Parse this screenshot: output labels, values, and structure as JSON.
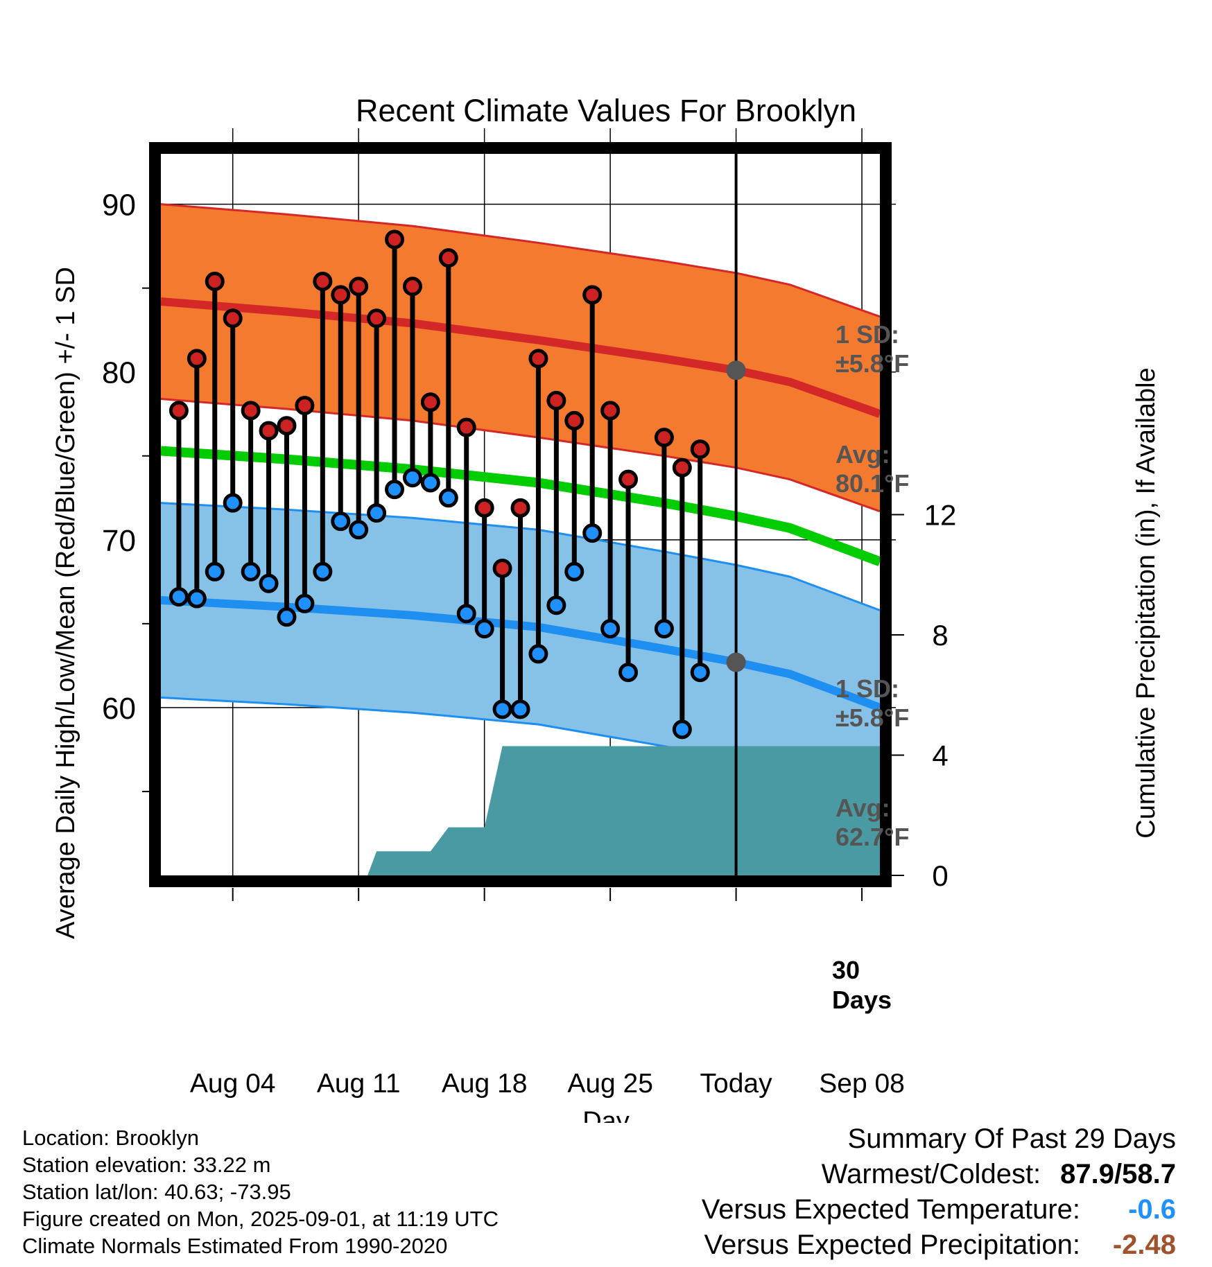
{
  "chart_data": {
    "type": "line",
    "title": "Recent Climate Values For Brooklyn",
    "xlabel": "Day",
    "ylabel": "Average Daily High/Low/Mean (Red/Blue/Green) +/- 1 SD",
    "y2label": "Cumulative Precipitation (in), If Available",
    "x_range": [
      "Jul 31",
      "Sep 10"
    ],
    "ylim": [
      50,
      93
    ],
    "y2lim": [
      0,
      24
    ],
    "yticks": [
      60,
      70,
      80,
      90
    ],
    "y2ticks": [
      0,
      4,
      8,
      12
    ],
    "xtick_labels": [
      "Aug 04",
      "Aug 11",
      "Aug 18",
      "Aug 25",
      "Today",
      "Sep 08"
    ],
    "xtick_days": [
      4,
      11,
      18,
      25,
      32,
      39
    ],
    "today_day": 32,
    "grid": true,
    "daily_high": [
      {
        "day": 1,
        "value": 77.7
      },
      {
        "day": 2,
        "value": 80.8
      },
      {
        "day": 3,
        "value": 85.4
      },
      {
        "day": 4,
        "value": 83.2
      },
      {
        "day": 5,
        "value": 77.7
      },
      {
        "day": 6,
        "value": 76.5
      },
      {
        "day": 7,
        "value": 76.8
      },
      {
        "day": 8,
        "value": 78.0
      },
      {
        "day": 9,
        "value": 85.4
      },
      {
        "day": 10,
        "value": 84.6
      },
      {
        "day": 11,
        "value": 85.1
      },
      {
        "day": 12,
        "value": 83.2
      },
      {
        "day": 13,
        "value": 87.9
      },
      {
        "day": 14,
        "value": 85.1
      },
      {
        "day": 15,
        "value": 78.2
      },
      {
        "day": 16,
        "value": 86.8
      },
      {
        "day": 17,
        "value": 76.7
      },
      {
        "day": 18,
        "value": 71.9
      },
      {
        "day": 19,
        "value": 68.3
      },
      {
        "day": 20,
        "value": 71.9
      },
      {
        "day": 21,
        "value": 80.8
      },
      {
        "day": 22,
        "value": 78.3
      },
      {
        "day": 23,
        "value": 77.1
      },
      {
        "day": 24,
        "value": 84.6
      },
      {
        "day": 25,
        "value": 77.7
      },
      {
        "day": 26,
        "value": 73.6
      },
      {
        "day": 28,
        "value": 76.1
      },
      {
        "day": 29,
        "value": 74.3
      },
      {
        "day": 30,
        "value": 75.4
      }
    ],
    "daily_low": [
      {
        "day": 1,
        "value": 66.6
      },
      {
        "day": 2,
        "value": 66.5
      },
      {
        "day": 3,
        "value": 68.1
      },
      {
        "day": 4,
        "value": 72.2
      },
      {
        "day": 5,
        "value": 68.1
      },
      {
        "day": 6,
        "value": 67.4
      },
      {
        "day": 7,
        "value": 65.4
      },
      {
        "day": 8,
        "value": 66.2
      },
      {
        "day": 9,
        "value": 68.1
      },
      {
        "day": 10,
        "value": 71.1
      },
      {
        "day": 11,
        "value": 70.6
      },
      {
        "day": 12,
        "value": 71.6
      },
      {
        "day": 13,
        "value": 73.0
      },
      {
        "day": 14,
        "value": 73.7
      },
      {
        "day": 15,
        "value": 73.4
      },
      {
        "day": 16,
        "value": 72.5
      },
      {
        "day": 17,
        "value": 65.6
      },
      {
        "day": 18,
        "value": 64.7
      },
      {
        "day": 19,
        "value": 59.9
      },
      {
        "day": 20,
        "value": 59.9
      },
      {
        "day": 21,
        "value": 63.2
      },
      {
        "day": 22,
        "value": 66.1
      },
      {
        "day": 23,
        "value": 68.1
      },
      {
        "day": 24,
        "value": 70.4
      },
      {
        "day": 25,
        "value": 64.7
      },
      {
        "day": 26,
        "value": 62.1
      },
      {
        "day": 28,
        "value": 64.7
      },
      {
        "day": 29,
        "value": 58.7
      },
      {
        "day": 30,
        "value": 62.1
      }
    ],
    "normal_high": [
      {
        "day": 0,
        "value": 84.2
      },
      {
        "day": 7,
        "value": 83.6
      },
      {
        "day": 14,
        "value": 82.9
      },
      {
        "day": 21,
        "value": 81.9
      },
      {
        "day": 28,
        "value": 80.8
      },
      {
        "day": 32,
        "value": 80.1
      },
      {
        "day": 35,
        "value": 79.4
      },
      {
        "day": 40,
        "value": 77.5
      }
    ],
    "normal_low": [
      {
        "day": 0,
        "value": 66.4
      },
      {
        "day": 7,
        "value": 66.0
      },
      {
        "day": 14,
        "value": 65.5
      },
      {
        "day": 21,
        "value": 64.8
      },
      {
        "day": 28,
        "value": 63.5
      },
      {
        "day": 32,
        "value": 62.7
      },
      {
        "day": 35,
        "value": 62.0
      },
      {
        "day": 40,
        "value": 60.0
      }
    ],
    "normal_mean": [
      {
        "day": 0,
        "value": 75.3
      },
      {
        "day": 7,
        "value": 74.8
      },
      {
        "day": 14,
        "value": 74.2
      },
      {
        "day": 21,
        "value": 73.4
      },
      {
        "day": 28,
        "value": 72.2
      },
      {
        "day": 32,
        "value": 71.4
      },
      {
        "day": 35,
        "value": 70.7
      },
      {
        "day": 40,
        "value": 68.7
      }
    ],
    "sd": 5.8,
    "cumulative_precip": [
      {
        "day": 11.5,
        "value": 0
      },
      {
        "day": 12,
        "value": 0.8
      },
      {
        "day": 15,
        "value": 0.8
      },
      {
        "day": 16,
        "value": 1.6
      },
      {
        "day": 18,
        "value": 1.6
      },
      {
        "day": 19,
        "value": 4.3
      },
      {
        "day": 40,
        "value": 4.3
      }
    ],
    "annotations": {
      "high_sd_label": "1 SD:",
      "high_sd_value": "±5.8°F",
      "high_avg_label": "Avg:",
      "high_avg_value": "80.1°F",
      "low_sd_label": "1 SD:",
      "low_sd_value": "±5.8°F",
      "low_avg_label": "Avg:",
      "low_avg_value": "62.7°F",
      "days_num": "30",
      "days_word": "Days"
    },
    "colors": {
      "high_band": "#f47a30",
      "high_line": "#d42828",
      "low_band": "#86c2e8",
      "low_line": "#1e8ef0",
      "mean_line": "#00cc00",
      "precip": "#4a9aa3",
      "high_marker": "#cc2222",
      "low_marker": "#1e90ff",
      "annotation": "#555555"
    }
  },
  "footer": {
    "location": "Location: Brooklyn",
    "elevation": "Station elevation: 33.22 m",
    "latlon": "Station lat/lon: 40.63; -73.95",
    "created": "Figure created on Mon, 2025-09-01, at 11:19 UTC",
    "normals": "Climate Normals Estimated From 1990-2020"
  },
  "summary": {
    "title": "Summary Of Past 29 Days",
    "warmest_label": "Warmest/Coldest:",
    "warmest_value": "87.9/58.7",
    "temp_label": "Versus Expected Temperature:",
    "temp_value": "-0.6",
    "precip_label": "Versus Expected Precipitation:",
    "precip_value": "-2.48"
  }
}
